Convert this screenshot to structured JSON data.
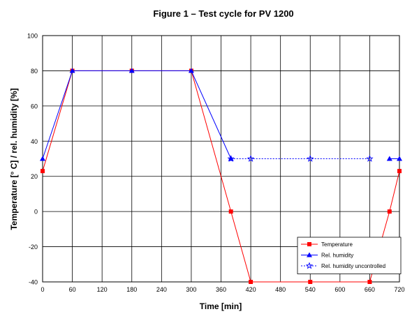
{
  "chart_data": {
    "type": "line",
    "title": "Figure 1 – Test cycle for PV 1200",
    "xlabel": "Time [min]",
    "ylabel": "Temperature [° C] / rel. humidity [%]",
    "xlim": [
      0,
      720
    ],
    "ylim": [
      -40,
      100
    ],
    "xticks": [
      0,
      60,
      120,
      180,
      240,
      300,
      360,
      420,
      480,
      540,
      600,
      660,
      720
    ],
    "yticks": [
      -40,
      -20,
      0,
      20,
      40,
      60,
      80,
      100
    ],
    "grid": true,
    "legend_position": "bottom-right",
    "series": [
      {
        "name": "Temperature",
        "color": "#ff0000",
        "marker": "square",
        "line": "solid",
        "x": [
          0,
          60,
          180,
          300,
          380,
          420,
          540,
          660,
          700,
          720
        ],
        "y": [
          23,
          80,
          80,
          80,
          0,
          -40,
          -40,
          -40,
          0,
          23
        ]
      },
      {
        "name": "Rel. humidity",
        "color": "#0000ff",
        "marker": "triangle",
        "line": "solid",
        "x": [
          0,
          60,
          180,
          300,
          380
        ],
        "y": [
          30,
          80,
          80,
          80,
          30
        ]
      },
      {
        "name": "Rel. humidity uncontrolled",
        "color": "#0000ff",
        "marker": "star",
        "line": "dotted",
        "x": [
          380,
          420,
          540,
          660
        ],
        "y": [
          30,
          30,
          30,
          30
        ]
      },
      {
        "name": "",
        "color": "#0000ff",
        "marker": "triangle",
        "line": "solid",
        "x": [
          700,
          720
        ],
        "y": [
          30,
          30
        ]
      }
    ]
  }
}
